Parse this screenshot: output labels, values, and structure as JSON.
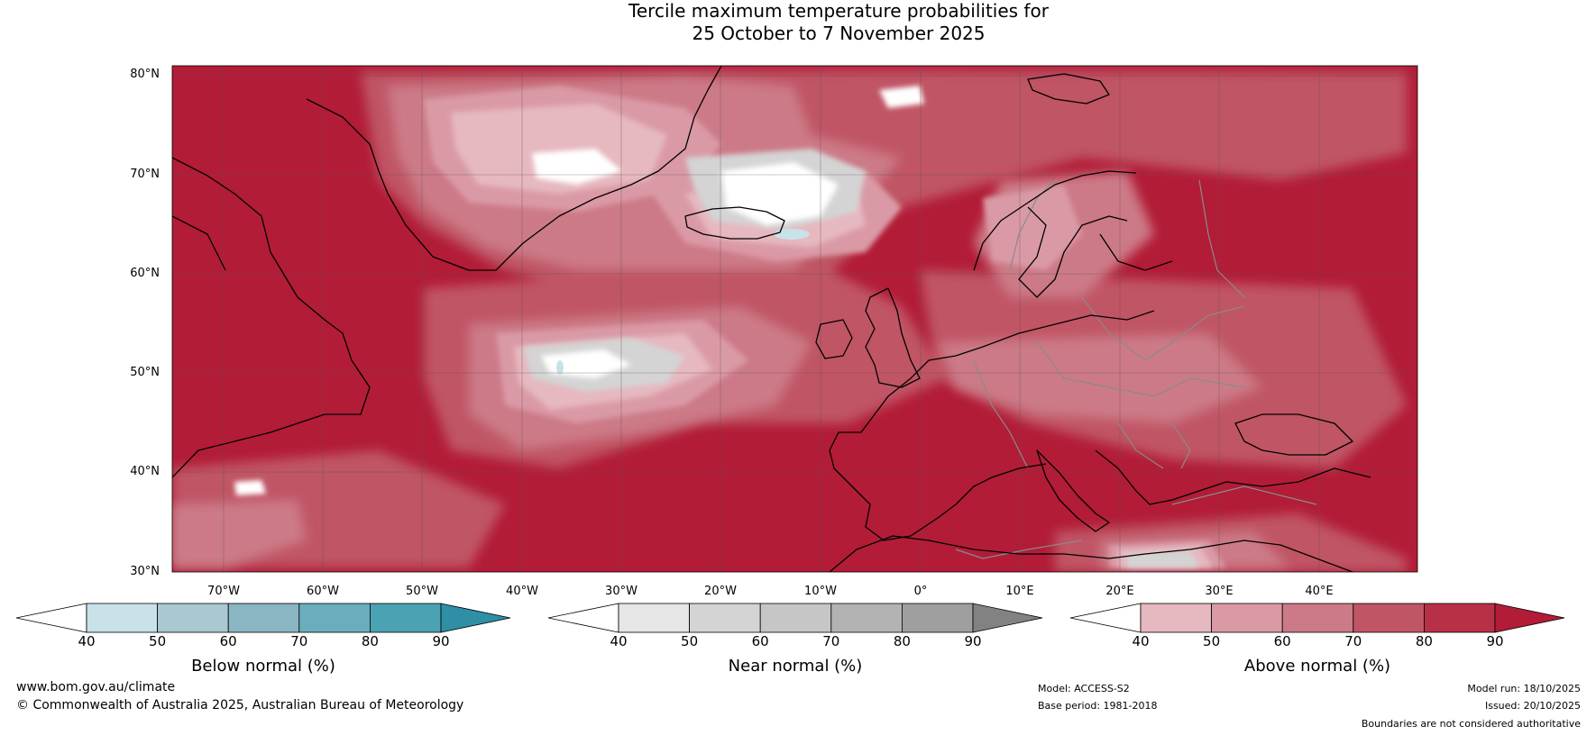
{
  "title_line1": "Tercile maximum temperature probabilities for",
  "title_line2": "25 October to 7 November 2025",
  "map": {
    "lat_labels": [
      "80°N",
      "70°N",
      "60°N",
      "50°N",
      "40°N",
      "30°N"
    ],
    "lon_labels": [
      "70°W",
      "60°W",
      "50°W",
      "40°W",
      "30°W",
      "20°W",
      "10°W",
      "0°",
      "10°E",
      "20°E",
      "30°E",
      "40°E"
    ],
    "background_color": "#b21c37",
    "coastline_color": "#000000",
    "border_color": "#8a8a8a"
  },
  "colorbars": [
    {
      "label": "Below normal (%)",
      "ticks": [
        "40",
        "50",
        "60",
        "70",
        "80",
        "90"
      ],
      "colors": [
        "#ffffff",
        "#c9e1e8",
        "#a9c8d0",
        "#8ab5c2",
        "#6aaebd",
        "#4aa2b3",
        "#2e8fa5"
      ]
    },
    {
      "label": "Near normal (%)",
      "ticks": [
        "40",
        "50",
        "60",
        "70",
        "80",
        "90"
      ],
      "colors": [
        "#ffffff",
        "#e6e6e6",
        "#d4d4d4",
        "#c6c6c6",
        "#b3b3b3",
        "#9f9f9f",
        "#828282"
      ]
    },
    {
      "label": "Above normal (%)",
      "ticks": [
        "40",
        "50",
        "60",
        "70",
        "80",
        "90"
      ],
      "colors": [
        "#ffffff",
        "#e6b8c0",
        "#da9aa5",
        "#cc7a87",
        "#c05565",
        "#b83045",
        "#b21c37"
      ]
    }
  ],
  "footer": {
    "website": "www.bom.gov.au/climate",
    "copyright": "© Commonwealth of Australia 2025, Australian Bureau of Meteorology",
    "model": "Model: ACCESS-S2",
    "base_period": "Base period: 1981-2018",
    "model_run": "Model run: 18/10/2025",
    "issued": "Issued: 20/10/2025",
    "disclaimer": "Boundaries are not considered authoritative"
  }
}
